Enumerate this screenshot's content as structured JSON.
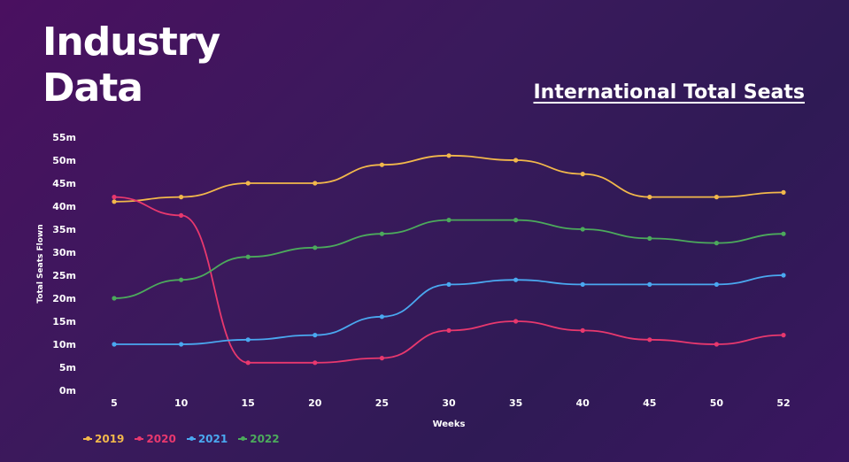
{
  "heading": {
    "line1": "Industry",
    "line2": "Data"
  },
  "chart_data": {
    "type": "line",
    "title": "International Total Seats",
    "xlabel": "Weeks",
    "ylabel": "Total Seats Flown",
    "categories": [
      "5",
      "10",
      "15",
      "20",
      "25",
      "30",
      "35",
      "40",
      "45",
      "50",
      "52"
    ],
    "yticks": [
      "0m",
      "5m",
      "10m",
      "15m",
      "20m",
      "25m",
      "30m",
      "35m",
      "40m",
      "45m",
      "50m",
      "55m"
    ],
    "ylim": [
      0,
      55
    ],
    "grid": false,
    "legend": "bottom-left",
    "series": [
      {
        "name": "2019",
        "color": "#f2b84b",
        "values": [
          41,
          42,
          45,
          45,
          49,
          51,
          50,
          47,
          42,
          42,
          43
        ]
      },
      {
        "name": "2020",
        "color": "#e8386e",
        "values": [
          42,
          38,
          6,
          6,
          7,
          13,
          15,
          13,
          11,
          10,
          12
        ]
      },
      {
        "name": "2021",
        "color": "#4aa8f0",
        "values": [
          10,
          10,
          11,
          12,
          16,
          23,
          24,
          23,
          23,
          23,
          25
        ]
      },
      {
        "name": "2022",
        "color": "#4caa5c",
        "values": [
          20,
          24,
          29,
          31,
          34,
          37,
          37,
          35,
          33,
          32,
          34
        ]
      }
    ]
  }
}
